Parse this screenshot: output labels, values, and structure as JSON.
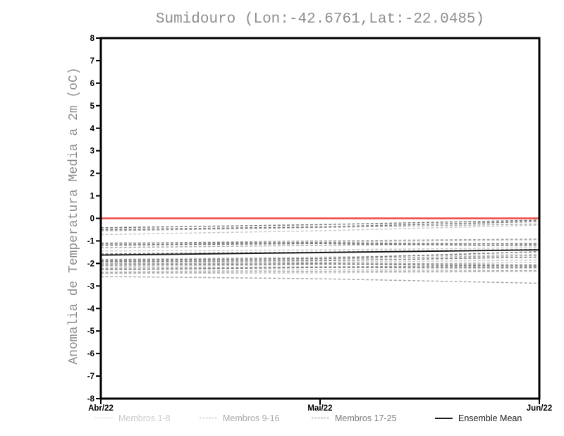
{
  "title": "Sumidouro (Lon:-42.6761,Lat:-22.0485)",
  "chart_data": {
    "type": "line",
    "title": "Sumidouro (Lon:-42.6761,Lat:-22.0485)",
    "xlabel": "",
    "ylabel": "Anomalia de Temperatura Media a 2m (oC)",
    "x_tick_labels": [
      "Abr/22",
      "Mai/22",
      "Jun/22"
    ],
    "ylim": [
      -8,
      8
    ],
    "y_tick_step": 1,
    "grid": false,
    "legend_position": "bottom",
    "zero_line": {
      "value": 0,
      "color": "#ef4a45"
    },
    "groups": [
      {
        "name": "Membros 1-8",
        "color": "#c9c9c9",
        "style": "dashed",
        "members": [
          [
            -0.72,
            -0.55,
            -0.3
          ],
          [
            -1.22,
            -1.05,
            -0.95
          ],
          [
            -1.45,
            -1.4,
            -1.3
          ],
          [
            -1.82,
            -1.72,
            -1.6
          ],
          [
            -1.98,
            -1.95,
            -1.85
          ],
          [
            -2.15,
            -2.05,
            -1.95
          ],
          [
            -2.38,
            -2.28,
            -2.2
          ],
          [
            -2.45,
            -2.42,
            -2.35
          ]
        ]
      },
      {
        "name": "Membros 9-16",
        "color": "#a8a8a8",
        "style": "dashed",
        "members": [
          [
            -0.55,
            -0.4,
            -0.25
          ],
          [
            -1.12,
            -1.0,
            -0.92
          ],
          [
            -1.3,
            -1.2,
            -1.1
          ],
          [
            -1.88,
            -1.8,
            -1.65
          ],
          [
            -2.02,
            -1.98,
            -2.05
          ],
          [
            -2.22,
            -2.15,
            -2.1
          ],
          [
            -2.42,
            -2.35,
            -2.32
          ],
          [
            -2.58,
            -2.68,
            -2.88
          ]
        ]
      },
      {
        "name": "Membros 17-25",
        "color": "#7a7a7a",
        "style": "dashed",
        "members": [
          [
            -0.42,
            -0.28,
            -0.08
          ],
          [
            -0.5,
            -0.38,
            -0.14
          ],
          [
            -1.1,
            -1.08,
            -1.15
          ],
          [
            -1.18,
            -1.12,
            -1.22
          ],
          [
            -1.58,
            -1.5,
            -1.38
          ],
          [
            -1.85,
            -1.78,
            -1.48
          ],
          [
            -1.92,
            -1.88,
            -1.72
          ],
          [
            -2.08,
            -2.02,
            -2.12
          ],
          [
            -2.28,
            -2.18,
            -2.18
          ]
        ]
      }
    ],
    "ensemble_mean": {
      "name": "Ensemble Mean",
      "color": "#1a1a1a",
      "style": "solid",
      "values": [
        -1.63,
        -1.52,
        -1.4
      ]
    }
  },
  "legend": {
    "items": [
      {
        "label": "Membros 1-8",
        "color": "#c9c9c9",
        "style": "dashed"
      },
      {
        "label": "Membros 9-16",
        "color": "#a8a8a8",
        "style": "dashed"
      },
      {
        "label": "Membros 17-25",
        "color": "#7a7a7a",
        "style": "dashed"
      },
      {
        "label": "Ensemble Mean",
        "color": "#1a1a1a",
        "style": "solid"
      }
    ]
  }
}
